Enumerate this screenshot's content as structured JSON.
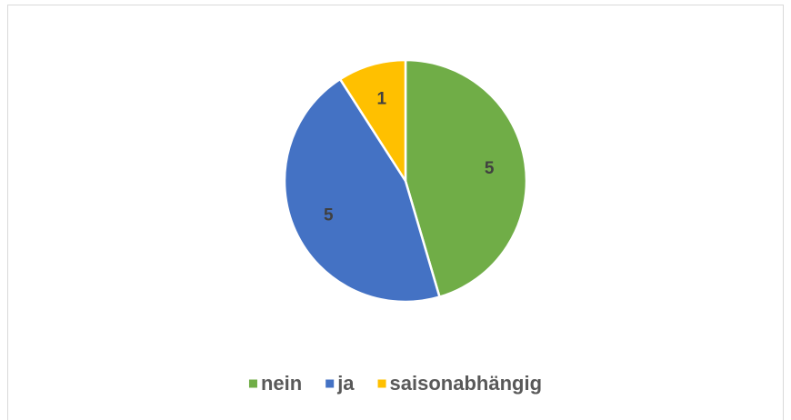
{
  "chart_data": {
    "type": "pie",
    "categories": [
      "nein",
      "ja",
      "saisonabhängig"
    ],
    "values": [
      5,
      5,
      1
    ],
    "colors": [
      "#70ad47",
      "#4472c4",
      "#ffc000"
    ],
    "legend": "bottom"
  }
}
